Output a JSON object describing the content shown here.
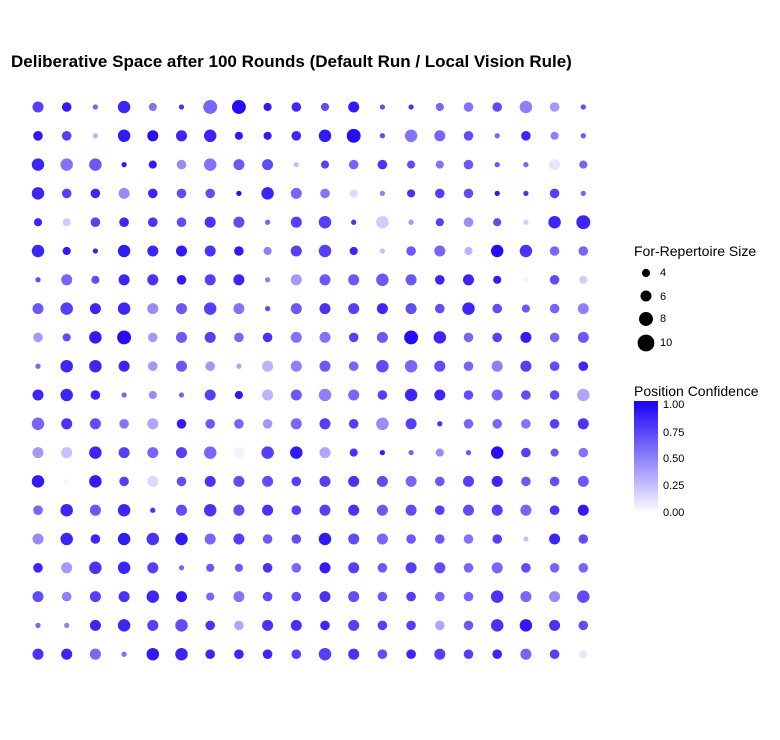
{
  "chart_data": {
    "type": "scatter",
    "title": "Deliberative Space after 100 Rounds (Default Run / Local Vision Rule)",
    "xlabel": "",
    "ylabel": "",
    "grid": false,
    "grid_cols": 20,
    "grid_rows": 20,
    "rows": [
      {
        "s": [
          6,
          5,
          2,
          7,
          4,
          2,
          8,
          8,
          4,
          5,
          4,
          6,
          2,
          2,
          4,
          5,
          5,
          7,
          5,
          2
        ],
        "c": [
          0.75,
          0.9,
          0.6,
          0.85,
          0.55,
          0.8,
          0.6,
          0.95,
          0.9,
          0.85,
          0.7,
          0.9,
          0.7,
          0.8,
          0.6,
          0.55,
          0.7,
          0.5,
          0.4,
          0.7
        ]
      },
      {
        "s": [
          5,
          5,
          2,
          7,
          6,
          6,
          7,
          4,
          4,
          5,
          7,
          8,
          2,
          7,
          6,
          5,
          2,
          5,
          4,
          2
        ],
        "c": [
          0.9,
          0.75,
          0.3,
          0.9,
          0.95,
          0.85,
          0.85,
          0.9,
          0.9,
          0.85,
          0.9,
          0.95,
          0.7,
          0.55,
          0.6,
          0.7,
          0.6,
          0.85,
          0.5,
          0.65
        ]
      },
      {
        "s": [
          7,
          7,
          7,
          2,
          4,
          5,
          7,
          6,
          6,
          2,
          4,
          5,
          5,
          4,
          4,
          5,
          2,
          2,
          6,
          4
        ],
        "c": [
          0.85,
          0.55,
          0.65,
          0.9,
          0.9,
          0.45,
          0.55,
          0.65,
          0.7,
          0.25,
          0.75,
          0.6,
          0.8,
          0.7,
          0.55,
          0.65,
          0.65,
          0.6,
          0.1,
          0.6
        ]
      },
      {
        "s": [
          7,
          5,
          5,
          6,
          5,
          5,
          5,
          2,
          7,
          6,
          5,
          4,
          2,
          4,
          5,
          5,
          2,
          2,
          5,
          2
        ],
        "c": [
          0.85,
          0.75,
          0.85,
          0.45,
          0.85,
          0.7,
          0.7,
          0.95,
          0.85,
          0.6,
          0.55,
          0.15,
          0.5,
          0.8,
          0.75,
          0.7,
          0.9,
          0.8,
          0.75,
          0.6
        ]
      },
      {
        "s": [
          4,
          4,
          5,
          5,
          5,
          5,
          6,
          6,
          2,
          6,
          7,
          2,
          7,
          2,
          4,
          5,
          4,
          2,
          7,
          8
        ],
        "c": [
          0.85,
          0.2,
          0.75,
          0.85,
          0.8,
          0.7,
          0.8,
          0.7,
          0.6,
          0.75,
          0.75,
          0.8,
          0.2,
          0.4,
          0.75,
          0.45,
          0.7,
          0.2,
          0.85,
          0.85
        ]
      },
      {
        "s": [
          7,
          4,
          2,
          7,
          6,
          6,
          6,
          5,
          4,
          6,
          7,
          4,
          2,
          5,
          6,
          4,
          7,
          7,
          5,
          5
        ],
        "c": [
          0.85,
          0.9,
          0.85,
          0.9,
          0.85,
          0.9,
          0.8,
          0.9,
          0.5,
          0.75,
          0.75,
          0.85,
          0.25,
          0.65,
          0.6,
          0.3,
          0.95,
          0.8,
          0.6,
          0.6
        ]
      },
      {
        "s": [
          2,
          6,
          4,
          6,
          6,
          5,
          6,
          6,
          2,
          6,
          6,
          6,
          7,
          6,
          5,
          6,
          4,
          2,
          5,
          4
        ],
        "c": [
          0.7,
          0.6,
          0.7,
          0.85,
          0.8,
          0.9,
          0.75,
          0.85,
          0.5,
          0.4,
          0.65,
          0.65,
          0.65,
          0.65,
          0.85,
          0.85,
          0.9,
          0.05,
          0.7,
          0.2
        ]
      },
      {
        "s": [
          6,
          7,
          6,
          7,
          6,
          6,
          7,
          6,
          2,
          6,
          6,
          6,
          6,
          6,
          5,
          7,
          5,
          4,
          5,
          6
        ],
        "c": [
          0.65,
          0.75,
          0.85,
          0.85,
          0.45,
          0.65,
          0.75,
          0.55,
          0.7,
          0.65,
          0.8,
          0.75,
          0.85,
          0.7,
          0.7,
          0.85,
          0.7,
          0.65,
          0.6,
          0.5
        ]
      },
      {
        "s": [
          5,
          4,
          7,
          8,
          5,
          6,
          6,
          5,
          5,
          6,
          6,
          5,
          6,
          8,
          7,
          5,
          5,
          6,
          5,
          6
        ],
        "c": [
          0.4,
          0.7,
          0.9,
          0.95,
          0.4,
          0.65,
          0.75,
          0.6,
          0.8,
          0.55,
          0.55,
          0.75,
          0.65,
          0.95,
          0.85,
          0.6,
          0.75,
          0.9,
          0.6,
          0.65
        ]
      },
      {
        "s": [
          2,
          7,
          7,
          6,
          5,
          6,
          5,
          2,
          6,
          6,
          6,
          5,
          7,
          7,
          6,
          5,
          6,
          6,
          5,
          5
        ],
        "c": [
          0.6,
          0.85,
          0.85,
          0.85,
          0.4,
          0.65,
          0.4,
          0.35,
          0.3,
          0.5,
          0.65,
          0.6,
          0.7,
          0.6,
          0.7,
          0.6,
          0.5,
          0.75,
          0.7,
          0.85
        ]
      },
      {
        "s": [
          6,
          7,
          5,
          2,
          4,
          2,
          6,
          4,
          6,
          6,
          7,
          6,
          5,
          7,
          6,
          5,
          6,
          5,
          5,
          7
        ],
        "c": [
          0.85,
          0.85,
          0.85,
          0.6,
          0.45,
          0.6,
          0.75,
          0.9,
          0.3,
          0.65,
          0.5,
          0.6,
          0.75,
          0.85,
          0.85,
          0.7,
          0.6,
          0.7,
          0.7,
          0.35
        ]
      },
      {
        "s": [
          7,
          6,
          6,
          5,
          6,
          5,
          5,
          5,
          5,
          6,
          6,
          5,
          7,
          6,
          2,
          5,
          5,
          5,
          5,
          6
        ],
        "c": [
          0.6,
          0.8,
          0.7,
          0.55,
          0.35,
          0.9,
          0.65,
          0.6,
          0.4,
          0.6,
          0.75,
          0.75,
          0.45,
          0.75,
          0.8,
          0.6,
          0.6,
          0.55,
          0.75,
          0.8
        ]
      },
      {
        "s": [
          6,
          6,
          7,
          6,
          6,
          6,
          7,
          6,
          7,
          7,
          6,
          4,
          2,
          2,
          4,
          2,
          7,
          5,
          4,
          5
        ],
        "c": [
          0.4,
          0.25,
          0.85,
          0.75,
          0.6,
          0.75,
          0.6,
          0.05,
          0.75,
          0.9,
          0.35,
          0.8,
          0.9,
          0.6,
          0.45,
          0.65,
          0.95,
          0.75,
          0.65,
          0.55
        ]
      },
      {
        "s": [
          7,
          2,
          7,
          5,
          6,
          5,
          6,
          6,
          6,
          5,
          6,
          6,
          6,
          6,
          5,
          6,
          6,
          5,
          5,
          6
        ],
        "c": [
          0.9,
          0.03,
          0.9,
          0.75,
          0.15,
          0.7,
          0.8,
          0.7,
          0.7,
          0.75,
          0.75,
          0.8,
          0.7,
          0.6,
          0.65,
          0.75,
          0.85,
          0.65,
          0.7,
          0.65
        ]
      },
      {
        "s": [
          5,
          7,
          6,
          7,
          2,
          6,
          7,
          6,
          6,
          5,
          6,
          6,
          6,
          6,
          5,
          6,
          6,
          6,
          5,
          6
        ],
        "c": [
          0.6,
          0.85,
          0.65,
          0.85,
          0.8,
          0.7,
          0.8,
          0.7,
          0.8,
          0.75,
          0.75,
          0.8,
          0.65,
          0.7,
          0.75,
          0.7,
          0.75,
          0.6,
          0.8,
          0.9
        ]
      },
      {
        "s": [
          6,
          7,
          5,
          7,
          7,
          7,
          6,
          6,
          5,
          5,
          7,
          6,
          6,
          5,
          5,
          5,
          5,
          2,
          6,
          5
        ],
        "c": [
          0.45,
          0.85,
          0.85,
          0.9,
          0.8,
          0.9,
          0.6,
          0.75,
          0.65,
          0.7,
          0.9,
          0.7,
          0.6,
          0.65,
          0.65,
          0.55,
          0.75,
          0.25,
          0.85,
          0.7
        ]
      },
      {
        "s": [
          5,
          6,
          7,
          7,
          6,
          2,
          4,
          4,
          5,
          5,
          6,
          6,
          5,
          6,
          6,
          5,
          6,
          5,
          5,
          5
        ],
        "c": [
          0.85,
          0.4,
          0.8,
          0.85,
          0.75,
          0.6,
          0.65,
          0.65,
          0.8,
          0.6,
          0.9,
          0.75,
          0.65,
          0.75,
          0.7,
          0.6,
          0.6,
          0.7,
          0.6,
          0.6
        ]
      },
      {
        "s": [
          6,
          5,
          6,
          6,
          7,
          6,
          4,
          6,
          5,
          5,
          6,
          6,
          5,
          5,
          5,
          5,
          7,
          6,
          6,
          7
        ],
        "c": [
          0.7,
          0.5,
          0.75,
          0.8,
          0.85,
          0.9,
          0.6,
          0.55,
          0.7,
          0.7,
          0.8,
          0.7,
          0.65,
          0.75,
          0.6,
          0.6,
          0.8,
          0.6,
          0.45,
          0.7
        ]
      },
      {
        "s": [
          2,
          2,
          6,
          7,
          6,
          7,
          5,
          5,
          6,
          6,
          5,
          6,
          5,
          5,
          5,
          5,
          7,
          7,
          6,
          5
        ],
        "c": [
          0.6,
          0.5,
          0.85,
          0.85,
          0.75,
          0.7,
          0.8,
          0.35,
          0.8,
          0.8,
          0.85,
          0.75,
          0.75,
          0.75,
          0.35,
          0.65,
          0.8,
          0.9,
          0.8,
          0.7
        ]
      },
      {
        "s": [
          6,
          6,
          6,
          2,
          7,
          7,
          5,
          5,
          5,
          5,
          7,
          6,
          5,
          5,
          6,
          5,
          5,
          6,
          5,
          4
        ],
        "c": [
          0.8,
          0.85,
          0.6,
          0.55,
          0.9,
          0.85,
          0.85,
          0.85,
          0.85,
          0.75,
          0.75,
          0.8,
          0.7,
          0.85,
          0.75,
          0.75,
          0.85,
          0.6,
          0.75,
          0.1
        ]
      }
    ],
    "legend": {
      "size": {
        "title": "For-Repertoire Size",
        "breaks": [
          4,
          6,
          8,
          10
        ]
      },
      "color": {
        "title": "Position Confidence",
        "ticks": [
          "1.00",
          "0.75",
          "0.50",
          "0.25",
          "0.00"
        ],
        "low": "#ffffff",
        "high": "#1a00f5"
      }
    }
  }
}
